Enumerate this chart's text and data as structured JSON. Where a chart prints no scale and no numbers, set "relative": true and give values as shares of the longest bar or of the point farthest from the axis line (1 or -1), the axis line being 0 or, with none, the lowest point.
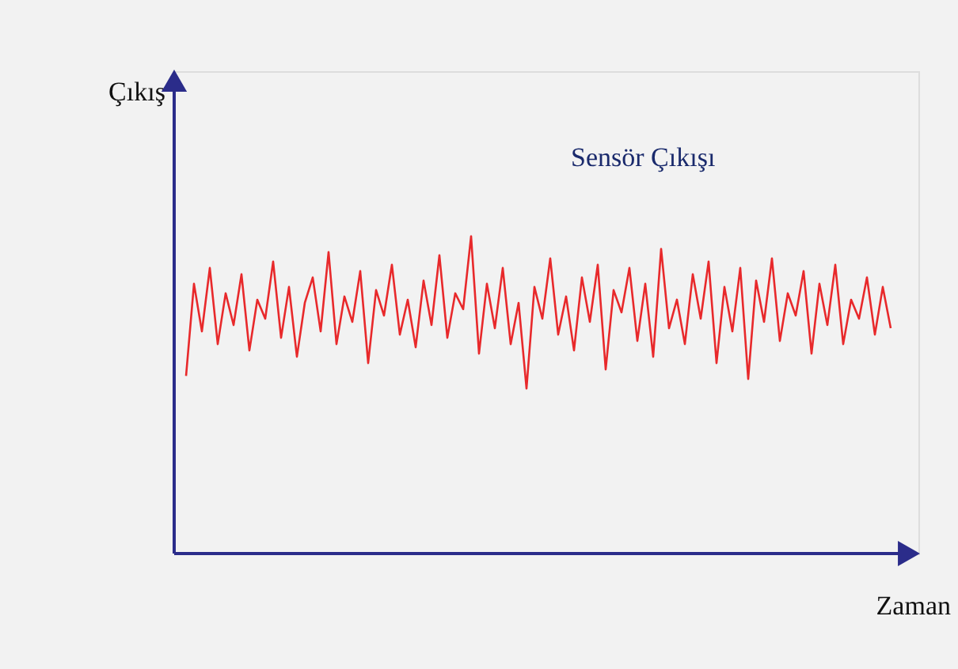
{
  "chart_data": {
    "type": "line",
    "relative": true,
    "xlabel": "Zaman",
    "ylabel": "Çıkış",
    "legend": false,
    "grid": false,
    "tick_labels": false,
    "line_style": "solid",
    "marker": "none",
    "categories": [
      null,
      null,
      null,
      null,
      null,
      null,
      null,
      null,
      null,
      null,
      null,
      null,
      null,
      null,
      null,
      null,
      null,
      null,
      null,
      null,
      null,
      null,
      null,
      null,
      null,
      null,
      null,
      null,
      null,
      null,
      null,
      null,
      null,
      null,
      null,
      null,
      null,
      null,
      null,
      null,
      null,
      null,
      null,
      null,
      null,
      null,
      null,
      null,
      null,
      null,
      null,
      null,
      null,
      null,
      null,
      null,
      null,
      null,
      null,
      null,
      null,
      null,
      null,
      null,
      null,
      null,
      null,
      null,
      null,
      null,
      null,
      null,
      null,
      null,
      null,
      null,
      null,
      null,
      null,
      null,
      null,
      null,
      null,
      null,
      null,
      null,
      null,
      null,
      null,
      null
    ],
    "series": [
      {
        "name": "Sensör Çıkışı",
        "color": "#e8292b",
        "values": [
          0.56,
          0.85,
          0.7,
          0.9,
          0.66,
          0.82,
          0.72,
          0.88,
          0.64,
          0.8,
          0.74,
          0.92,
          0.68,
          0.84,
          0.62,
          0.79,
          0.87,
          0.7,
          0.95,
          0.66,
          0.81,
          0.73,
          0.89,
          0.6,
          0.83,
          0.75,
          0.91,
          0.69,
          0.8,
          0.65,
          0.86,
          0.72,
          0.94,
          0.68,
          0.82,
          0.77,
          1.0,
          0.63,
          0.85,
          0.71,
          0.9,
          0.66,
          0.79,
          0.52,
          0.84,
          0.74,
          0.93,
          0.69,
          0.81,
          0.64,
          0.87,
          0.73,
          0.91,
          0.58,
          0.83,
          0.76,
          0.9,
          0.67,
          0.85,
          0.62,
          0.96,
          0.71,
          0.8,
          0.66,
          0.88,
          0.74,
          0.92,
          0.6,
          0.84,
          0.7,
          0.9,
          0.55,
          0.86,
          0.73,
          0.93,
          0.67,
          0.82,
          0.75,
          0.89,
          0.63,
          0.85,
          0.72,
          0.91,
          0.66,
          0.8,
          0.74,
          0.87,
          0.69,
          0.84,
          0.71
        ]
      }
    ]
  }
}
